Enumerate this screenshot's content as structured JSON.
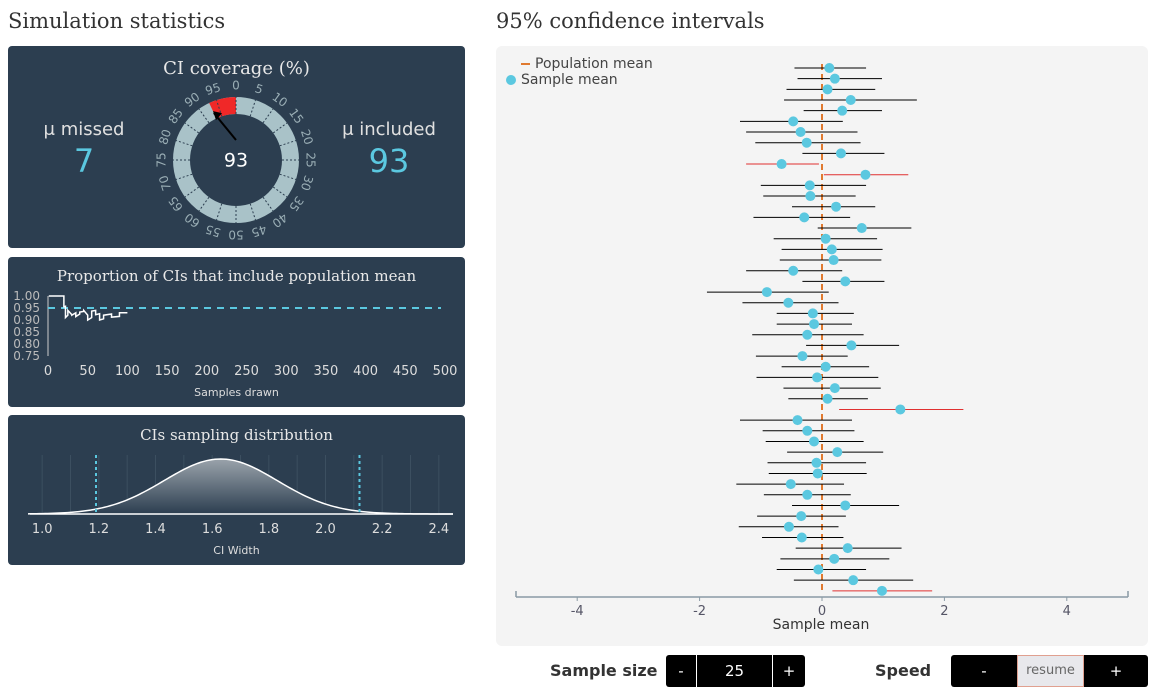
{
  "headings": {
    "left": "Simulation statistics",
    "right": "95% confidence intervals"
  },
  "coverage": {
    "title": "CI coverage (%)",
    "missed_label": "μ missed",
    "missed_value": "7",
    "included_label": "μ included",
    "included_value": "93",
    "gauge_value": "93",
    "gauge_ticks": [
      "0",
      "5",
      "10",
      "15",
      "20",
      "25",
      "30",
      "35",
      "40",
      "45",
      "50",
      "55",
      "60",
      "65",
      "70",
      "75",
      "80",
      "85",
      "90",
      "95"
    ]
  },
  "proportion_chart": {
    "title": "Proportion of CIs that include population mean",
    "xlabel": "Samples drawn"
  },
  "sampling_chart": {
    "title": "CIs sampling distribution",
    "xlabel": "CI Width"
  },
  "ci_chart": {
    "xlabel": "Sample mean",
    "legend": [
      "Population mean",
      "Sample mean"
    ]
  },
  "controls": {
    "sample_size_label": "Sample size",
    "sample_size_value": "25",
    "minus": "-",
    "plus": "+",
    "speed_label": "Speed",
    "resume_label": "resume"
  },
  "colors": {
    "panel": "#2c3e50",
    "accent": "#5bc8e0",
    "missed": "#e03030",
    "population_mean": "#e07a30"
  },
  "chart_data": [
    {
      "type": "line",
      "title": "Proportion of CIs that include population mean",
      "xlabel": "Samples drawn",
      "ylabel": "",
      "xlim": [
        0,
        500
      ],
      "ylim": [
        0.75,
        1.0
      ],
      "x_ticks": [
        0,
        50,
        100,
        150,
        200,
        250,
        300,
        350,
        400,
        450,
        500
      ],
      "y_ticks": [
        "1.00",
        "0.95",
        "0.90",
        "0.85",
        "0.80",
        "0.75"
      ],
      "reference_line": 0.95,
      "series": [
        {
          "x": [
            1,
            20,
            20,
            22,
            22,
            25,
            25,
            30,
            30,
            35,
            35,
            40,
            40,
            45,
            45,
            50,
            50,
            55,
            55,
            60,
            60,
            65,
            65,
            70,
            70,
            80,
            80,
            90,
            90,
            100
          ],
          "values": [
            1.0,
            1.0,
            0.955,
            0.957,
            0.91,
            0.92,
            0.94,
            0.922,
            0.92,
            0.93,
            0.914,
            0.925,
            0.933,
            0.936,
            0.94,
            0.92,
            0.9,
            0.91,
            0.937,
            0.94,
            0.922,
            0.926,
            0.9,
            0.905,
            0.92,
            0.925,
            0.912,
            0.915,
            0.93,
            0.93
          ]
        }
      ]
    },
    {
      "type": "area",
      "title": "CIs sampling distribution",
      "xlabel": "CI Width",
      "xlim": [
        0.95,
        2.45
      ],
      "x_ticks": [
        "1.0",
        "1.2",
        "1.4",
        "1.6",
        "1.8",
        "2.0",
        "2.2",
        "2.4"
      ],
      "curve": {
        "mean": 1.63,
        "sd": 0.2
      },
      "reference_lines": [
        1.19,
        2.12
      ]
    },
    {
      "type": "scatter",
      "title": "",
      "xlabel": "Sample mean",
      "xlim": [
        -5,
        5
      ],
      "x_ticks": [
        "-4",
        "-2",
        "0",
        "2",
        "4"
      ],
      "population_mean": 0,
      "legend": [
        "Population mean",
        "Sample mean"
      ],
      "intervals": [
        {
          "mean": 0.12,
          "lo": -0.45,
          "hi": 0.72
        },
        {
          "mean": 0.21,
          "lo": -0.4,
          "hi": 0.98
        },
        {
          "mean": 0.09,
          "lo": -0.58,
          "hi": 0.87
        },
        {
          "mean": 0.47,
          "lo": -0.62,
          "hi": 1.55
        },
        {
          "mean": 0.33,
          "lo": -0.3,
          "hi": 0.98
        },
        {
          "mean": -0.47,
          "lo": -1.34,
          "hi": 0.34
        },
        {
          "mean": -0.35,
          "lo": -1.24,
          "hi": 0.58
        },
        {
          "mean": -0.25,
          "lo": -1.09,
          "hi": 0.63
        },
        {
          "mean": 0.31,
          "lo": -0.32,
          "hi": 1.02
        },
        {
          "mean": -0.66,
          "lo": -1.24,
          "hi": -0.05,
          "missed": true
        },
        {
          "mean": 0.71,
          "lo": 0.03,
          "hi": 1.41,
          "missed": true
        },
        {
          "mean": -0.2,
          "lo": -1.0,
          "hi": 0.72
        },
        {
          "mean": -0.19,
          "lo": -0.96,
          "hi": 0.55
        },
        {
          "mean": 0.23,
          "lo": -0.49,
          "hi": 0.87
        },
        {
          "mean": -0.29,
          "lo": -1.12,
          "hi": 0.46
        },
        {
          "mean": 0.65,
          "lo": -0.07,
          "hi": 1.46
        },
        {
          "mean": 0.06,
          "lo": -0.79,
          "hi": 0.9
        },
        {
          "mean": 0.16,
          "lo": -0.66,
          "hi": 0.99
        },
        {
          "mean": 0.19,
          "lo": -0.69,
          "hi": 0.97
        },
        {
          "mean": -0.47,
          "lo": -1.24,
          "hi": 0.33
        },
        {
          "mean": 0.38,
          "lo": -0.32,
          "hi": 1.02
        },
        {
          "mean": -0.9,
          "lo": -1.88,
          "hi": 0.11
        },
        {
          "mean": -0.55,
          "lo": -1.3,
          "hi": 0.27
        },
        {
          "mean": -0.15,
          "lo": -0.74,
          "hi": 0.52
        },
        {
          "mean": -0.13,
          "lo": -0.74,
          "hi": 0.49
        },
        {
          "mean": -0.24,
          "lo": -1.14,
          "hi": 0.68
        },
        {
          "mean": 0.48,
          "lo": -0.26,
          "hi": 1.26
        },
        {
          "mean": -0.32,
          "lo": -1.08,
          "hi": 0.42
        },
        {
          "mean": 0.06,
          "lo": -0.66,
          "hi": 0.77
        },
        {
          "mean": -0.08,
          "lo": -1.07,
          "hi": 0.92
        },
        {
          "mean": 0.21,
          "lo": -0.63,
          "hi": 0.96
        },
        {
          "mean": 0.09,
          "lo": -0.55,
          "hi": 0.75
        },
        {
          "mean": 1.28,
          "lo": 0.28,
          "hi": 2.31,
          "missed": true
        },
        {
          "mean": -0.4,
          "lo": -1.34,
          "hi": 0.49
        },
        {
          "mean": -0.24,
          "lo": -0.97,
          "hi": 0.53
        },
        {
          "mean": -0.13,
          "lo": -0.92,
          "hi": 0.68
        },
        {
          "mean": 0.25,
          "lo": -0.57,
          "hi": 1.0
        },
        {
          "mean": -0.09,
          "lo": -0.89,
          "hi": 0.72
        },
        {
          "mean": -0.07,
          "lo": -0.87,
          "hi": 0.73
        },
        {
          "mean": -0.51,
          "lo": -1.4,
          "hi": 0.36
        },
        {
          "mean": -0.24,
          "lo": -0.95,
          "hi": 0.47
        },
        {
          "mean": 0.38,
          "lo": -0.49,
          "hi": 1.26
        },
        {
          "mean": -0.34,
          "lo": -1.06,
          "hi": 0.39
        },
        {
          "mean": -0.54,
          "lo": -1.36,
          "hi": 0.27
        },
        {
          "mean": -0.33,
          "lo": -0.98,
          "hi": 0.35
        },
        {
          "mean": 0.42,
          "lo": -0.43,
          "hi": 1.3
        },
        {
          "mean": 0.2,
          "lo": -0.68,
          "hi": 1.1
        },
        {
          "mean": -0.06,
          "lo": -0.74,
          "hi": 0.72
        },
        {
          "mean": 0.51,
          "lo": -0.46,
          "hi": 1.49
        },
        {
          "mean": 0.98,
          "lo": 0.17,
          "hi": 1.8,
          "missed": true
        }
      ]
    }
  ]
}
